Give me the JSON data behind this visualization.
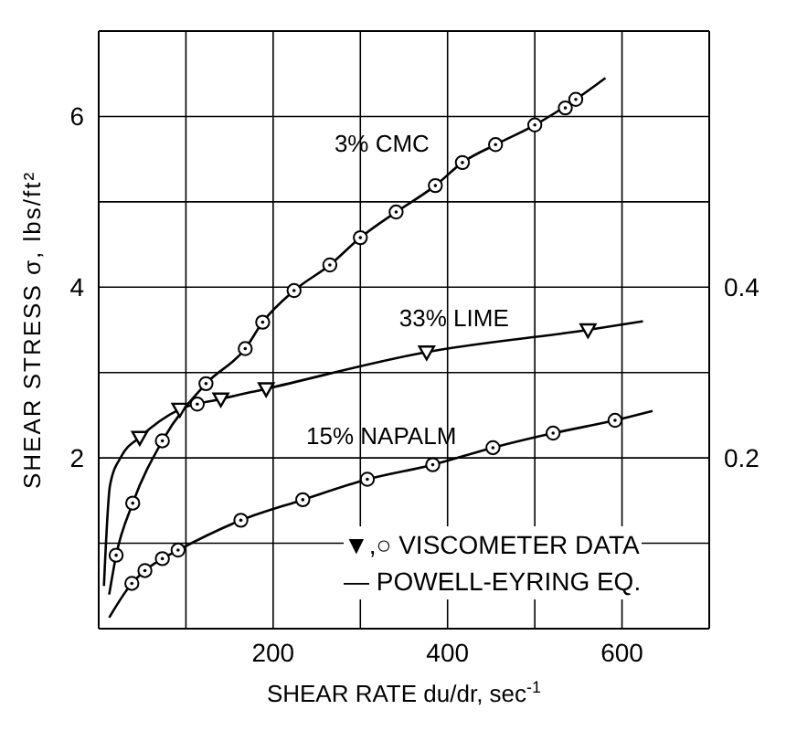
{
  "chart_data": {
    "type": "line",
    "xlabel": "SHEAR RATE  du/dr, sec$^{-1}$",
    "ylabel": "SHEAR STRESS σ, lbs/ft²",
    "xlim": [
      0,
      700
    ],
    "xticks": [
      {
        "value": 100,
        "label": null
      },
      200,
      {
        "value": 300,
        "label": null
      },
      400,
      {
        "value": 500,
        "label": null
      },
      600
    ],
    "ylim": [
      0,
      7
    ],
    "yticks": [
      {
        "value": 1,
        "label": null
      },
      2,
      {
        "value": 3,
        "label": null
      },
      4,
      {
        "value": 5,
        "label": null
      },
      6
    ],
    "y2lim": [
      0,
      0.7
    ],
    "y2ticks": [
      0.2,
      0.4
    ],
    "grid": true,
    "line_style": "solid",
    "annotations": [
      "▼,○ VISCOMETER DATA",
      "— POWELL-EYRING EQ."
    ],
    "series": [
      {
        "name": "3% CMC",
        "color": "#000000",
        "marker": "none",
        "x": [
          12,
          20,
          39,
          73,
          123,
          168,
          188,
          224,
          265,
          300,
          341,
          386,
          417,
          455,
          500,
          547,
          581
        ],
        "values": [
          0.4,
          0.86,
          1.47,
          2.2,
          2.87,
          3.28,
          3.59,
          3.96,
          4.26,
          4.58,
          4.88,
          5.19,
          5.46,
          5.67,
          5.9,
          6.2,
          6.45
        ]
      },
      {
        "type": "scatter",
        "color": "#000000",
        "marker": "circle",
        "x": [
          20,
          39,
          73,
          113,
          123,
          168,
          188,
          224,
          265,
          300,
          341,
          386,
          417,
          455,
          500,
          535,
          547
        ],
        "values": [
          0.86,
          1.47,
          2.2,
          2.63,
          2.87,
          3.28,
          3.59,
          3.96,
          4.26,
          4.58,
          4.88,
          5.19,
          5.46,
          5.67,
          5.9,
          6.1,
          6.2
        ]
      },
      {
        "name": "33% LIME",
        "axis": "y2",
        "color": "#000000",
        "marker": "none",
        "x": [
          6,
          13,
          26,
          47,
          93,
          140,
          192,
          376,
          561,
          624
        ],
        "values": [
          0.05,
          0.168,
          0.202,
          0.224,
          0.257,
          0.269,
          0.281,
          0.324,
          0.35,
          0.36
        ]
      },
      {
        "type": "scatter",
        "axis": "y2",
        "color": "#000000",
        "marker": "triangle",
        "x": [
          47,
          93,
          140,
          192,
          376,
          561
        ],
        "values": [
          0.224,
          0.257,
          0.269,
          0.281,
          0.324,
          0.35
        ]
      },
      {
        "name": "15% NAPALM",
        "color": "#000000",
        "marker": "none",
        "x": [
          12,
          38,
          53,
          73,
          91,
          163,
          234,
          308,
          383,
          452,
          521,
          592,
          635
        ],
        "values": [
          0.13,
          0.53,
          0.68,
          0.82,
          0.92,
          1.27,
          1.51,
          1.75,
          1.92,
          2.12,
          2.29,
          2.44,
          2.55
        ]
      },
      {
        "type": "scatter",
        "color": "#000000",
        "marker": "circle",
        "x": [
          38,
          53,
          73,
          91,
          163,
          234,
          308,
          383,
          452,
          521,
          592
        ],
        "values": [
          0.53,
          0.68,
          0.82,
          0.92,
          1.27,
          1.51,
          1.75,
          1.92,
          2.12,
          2.29,
          2.44
        ]
      }
    ]
  }
}
